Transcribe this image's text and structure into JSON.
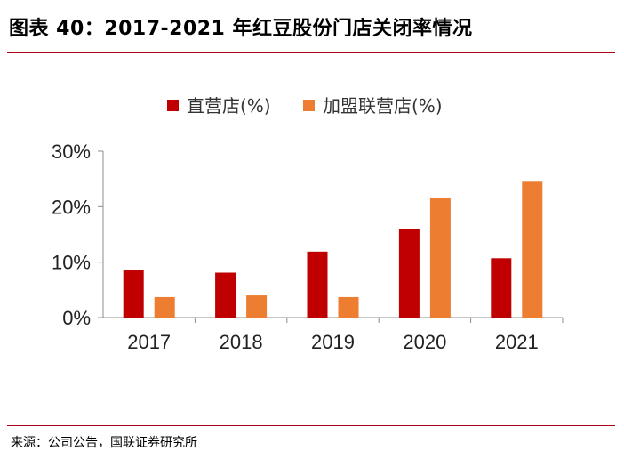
{
  "header": {
    "title": "图表 40：2017-2021 年红豆股份门店关闭率情况"
  },
  "footer": {
    "source": "来源：公司公告，国联证券研究所"
  },
  "colors": {
    "accent": "#a8001c",
    "direct": "#c00000",
    "franchise": "#ed7d31"
  },
  "chart_data": {
    "type": "bar",
    "title": "",
    "xlabel": "",
    "ylabel": "",
    "categories": [
      "2017",
      "2018",
      "2019",
      "2020",
      "2021"
    ],
    "series": [
      {
        "name": "直营店(%)",
        "color": "#c00000",
        "values": [
          8.5,
          8.1,
          11.9,
          16.0,
          10.7
        ]
      },
      {
        "name": "加盟联营店(%)",
        "color": "#ed7d31",
        "values": [
          3.7,
          4.0,
          3.7,
          21.5,
          24.5
        ]
      }
    ],
    "ylim": [
      0,
      30
    ],
    "yticks": [
      "0%",
      "10%",
      "20%",
      "30%"
    ],
    "ytick_values": [
      0,
      10,
      20,
      30
    ],
    "legend_position": "top-center",
    "grid": false
  }
}
